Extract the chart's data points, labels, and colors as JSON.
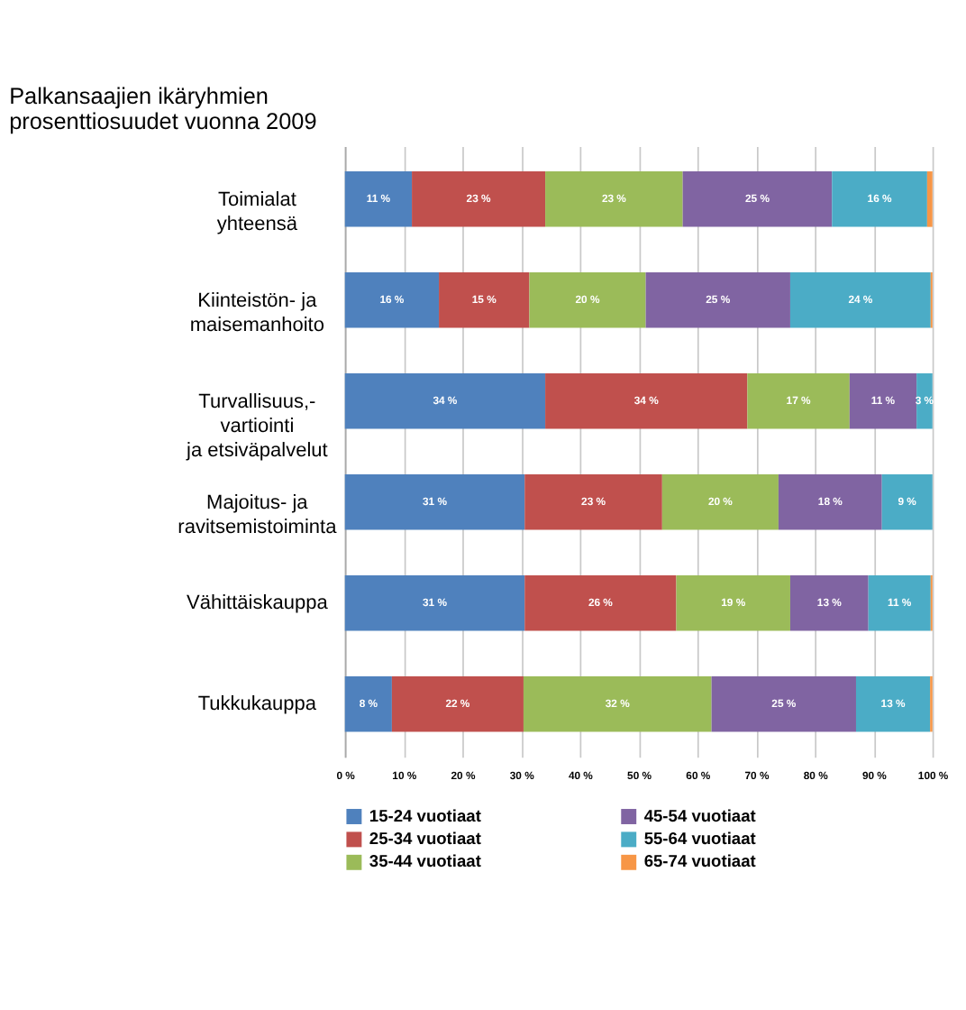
{
  "chart_data": {
    "type": "bar",
    "orientation": "horizontal",
    "stacked": true,
    "title": "Palkansaajien ikäryhmien\nprosenttiosuudet vuonna 2009",
    "categories": [
      "Toimialat\nyhteensä",
      "Kiinteistön- ja\nmaisemanhoito",
      "Turvallisuus,-\nvartiointi\nja etsiväpalvelut",
      "Majoitus- ja\nravitsemistoiminta",
      "Vähittäiskauppa",
      "Tukkukauppa"
    ],
    "series": [
      {
        "name": "15-24 vuotiaat",
        "color": "#4f81bd",
        "values": [
          11.4,
          16.0,
          34.1,
          30.6,
          30.6,
          8.0
        ],
        "value_labels": [
          "11 %",
          "16 %",
          "34 %",
          "31 %",
          "31 %",
          "8 %"
        ]
      },
      {
        "name": "25-34 vuotiaat",
        "color": "#c0504d",
        "values": [
          22.7,
          15.4,
          34.4,
          23.4,
          25.8,
          22.4
        ],
        "value_labels": [
          "23 %",
          "15 %",
          "34 %",
          "23 %",
          "26 %",
          "22 %"
        ]
      },
      {
        "name": "35-44 vuotiaat",
        "color": "#9bbb59",
        "values": [
          23.4,
          19.8,
          17.4,
          19.8,
          19.4,
          32.0
        ],
        "value_labels": [
          "23 %",
          "20 %",
          "17 %",
          "20 %",
          "19 %",
          "32 %"
        ]
      },
      {
        "name": "45-54 vuotiaat",
        "color": "#8064a2",
        "values": [
          25.4,
          24.6,
          11.4,
          17.6,
          13.3,
          24.6
        ],
        "value_labels": [
          "25 %",
          "25 %",
          "11 %",
          "18 %",
          "13 %",
          "25 %"
        ]
      },
      {
        "name": "55-64 vuotiaat",
        "color": "#4bacc6",
        "values": [
          16.2,
          23.9,
          2.7,
          8.6,
          10.6,
          12.6
        ],
        "value_labels": [
          "16 %",
          "24 %",
          "3 %",
          "9 %",
          "11 %",
          "13 %"
        ]
      },
      {
        "name": "65-74 vuotiaat",
        "color": "#f79646",
        "values": [
          0.9,
          0.3,
          0,
          0,
          0.3,
          0.4
        ]
      }
    ],
    "xlim": [
      0,
      100
    ],
    "xticks": [
      {
        "value": 0,
        "label": "0 %"
      },
      {
        "value": 10,
        "label": "10 %"
      },
      {
        "value": 20,
        "label": "20 %"
      },
      {
        "value": 30,
        "label": "30 %"
      },
      {
        "value": 40,
        "label": "40 %"
      },
      {
        "value": 50,
        "label": "50 %"
      },
      {
        "value": 60,
        "label": "60 %"
      },
      {
        "value": 70,
        "label": "70 %"
      },
      {
        "value": 80,
        "label": "80 %"
      },
      {
        "value": 90,
        "label": "90 %"
      },
      {
        "value": 100,
        "label": "100 %"
      }
    ],
    "grid": "x",
    "legend": "bottom"
  }
}
